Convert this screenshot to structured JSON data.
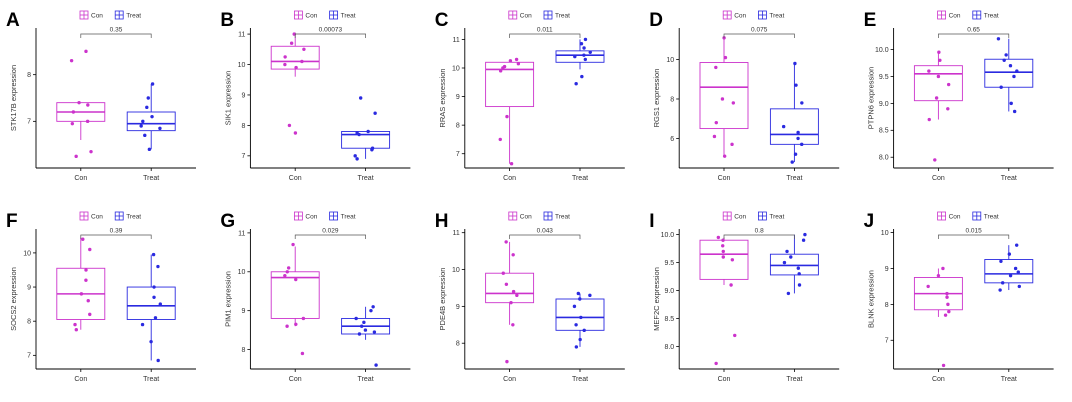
{
  "figure": {
    "panel_count": 10,
    "colors": {
      "con": "#cc33cc",
      "treat": "#2a2ae0",
      "axis": "#000000"
    }
  },
  "chart_data": [
    {
      "type": "box",
      "letter": "A",
      "gene": "STK17B",
      "ylabel": "STK17B expression",
      "categories": [
        "Con",
        "Treat"
      ],
      "legend": [
        "Con",
        "Treat"
      ],
      "ylim": [
        6.0,
        9.0
      ],
      "yticks": [
        7,
        8
      ],
      "pvalue": "0.35",
      "series": [
        {
          "name": "Con",
          "q1": 7.0,
          "median": 7.2,
          "q3": 7.4,
          "whisker_low": 6.6,
          "whisker_high": 7.4,
          "points": [
            8.5,
            8.3,
            7.4,
            7.35,
            7.2,
            7.0,
            6.95,
            6.35,
            6.25
          ]
        },
        {
          "name": "Treat",
          "q1": 6.8,
          "median": 6.95,
          "q3": 7.2,
          "whisker_low": 6.4,
          "whisker_high": 7.8,
          "points": [
            7.8,
            7.5,
            7.3,
            7.1,
            7.0,
            6.9,
            6.85,
            6.7,
            6.4
          ]
        }
      ]
    },
    {
      "type": "box",
      "letter": "B",
      "gene": "SIK1",
      "ylabel": "SIK1 expression",
      "categories": [
        "Con",
        "Treat"
      ],
      "legend": [
        "Con",
        "Treat"
      ],
      "ylim": [
        6.6,
        11.2
      ],
      "yticks": [
        7,
        8,
        9,
        10,
        11
      ],
      "pvalue": "0.00073",
      "series": [
        {
          "name": "Con",
          "q1": 9.85,
          "median": 10.1,
          "q3": 10.6,
          "whisker_low": 9.6,
          "whisker_high": 11.05,
          "points": [
            11.0,
            10.7,
            10.5,
            10.25,
            10.1,
            10.0,
            9.9,
            8.0,
            7.75
          ]
        },
        {
          "name": "Treat",
          "q1": 7.25,
          "median": 7.7,
          "q3": 7.8,
          "whisker_low": 6.9,
          "whisker_high": 7.8,
          "points": [
            8.9,
            8.4,
            7.8,
            7.75,
            7.7,
            7.25,
            7.2,
            7.0,
            6.9
          ]
        }
      ]
    },
    {
      "type": "box",
      "letter": "C",
      "gene": "RRAS",
      "ylabel": "RRAS expression",
      "categories": [
        "Con",
        "Treat"
      ],
      "legend": [
        "Con",
        "Treat"
      ],
      "ylim": [
        6.5,
        11.4
      ],
      "yticks": [
        7,
        8,
        9,
        10,
        11
      ],
      "pvalue": "0.011",
      "series": [
        {
          "name": "Con",
          "q1": 8.65,
          "median": 9.95,
          "q3": 10.2,
          "whisker_low": 6.65,
          "whisker_high": 10.3,
          "points": [
            10.3,
            10.25,
            10.15,
            10.05,
            10.0,
            9.9,
            8.3,
            7.5,
            6.65
          ]
        },
        {
          "name": "Treat",
          "q1": 10.2,
          "median": 10.45,
          "q3": 10.6,
          "whisker_low": 9.95,
          "whisker_high": 11.0,
          "points": [
            11.0,
            10.85,
            10.7,
            10.55,
            10.45,
            10.4,
            10.3,
            9.7,
            9.45
          ]
        }
      ]
    },
    {
      "type": "box",
      "letter": "D",
      "gene": "RGS1",
      "ylabel": "RGS1 expression",
      "categories": [
        "Con",
        "Treat"
      ],
      "legend": [
        "Con",
        "Treat"
      ],
      "ylim": [
        4.5,
        11.6
      ],
      "yticks": [
        6,
        8,
        10
      ],
      "pvalue": "0.075",
      "series": [
        {
          "name": "Con",
          "q1": 6.5,
          "median": 8.6,
          "q3": 9.85,
          "whisker_low": 5.1,
          "whisker_high": 11.1,
          "points": [
            11.1,
            10.1,
            9.6,
            8.0,
            7.8,
            6.8,
            6.1,
            5.7,
            5.1
          ]
        },
        {
          "name": "Treat",
          "q1": 5.7,
          "median": 6.2,
          "q3": 7.5,
          "whisker_low": 4.8,
          "whisker_high": 9.8,
          "points": [
            9.8,
            8.7,
            7.8,
            6.6,
            6.3,
            6.0,
            5.7,
            5.2,
            4.8
          ]
        }
      ]
    },
    {
      "type": "box",
      "letter": "E",
      "gene": "PTPN6",
      "ylabel": "PTPN6 expression",
      "categories": [
        "Con",
        "Treat"
      ],
      "legend": [
        "Con",
        "Treat"
      ],
      "ylim": [
        7.8,
        10.4
      ],
      "yticks": [
        8.0,
        8.5,
        9.0,
        9.5,
        10.0
      ],
      "pvalue": "0.65",
      "series": [
        {
          "name": "Con",
          "q1": 9.05,
          "median": 9.55,
          "q3": 9.7,
          "whisker_low": 8.7,
          "whisker_high": 9.95,
          "points": [
            9.95,
            9.8,
            9.6,
            9.5,
            9.35,
            9.1,
            8.9,
            8.7,
            7.95
          ]
        },
        {
          "name": "Treat",
          "q1": 9.3,
          "median": 9.58,
          "q3": 9.82,
          "whisker_low": 8.85,
          "whisker_high": 10.2,
          "points": [
            10.2,
            9.9,
            9.8,
            9.7,
            9.6,
            9.5,
            9.3,
            9.0,
            8.85
          ]
        }
      ]
    },
    {
      "type": "box",
      "letter": "F",
      "gene": "SOCS2",
      "ylabel": "SOCS2 expression",
      "categories": [
        "Con",
        "Treat"
      ],
      "legend": [
        "Con",
        "Treat"
      ],
      "ylim": [
        6.6,
        10.7
      ],
      "yticks": [
        7,
        8,
        9,
        10
      ],
      "pvalue": "0.39",
      "series": [
        {
          "name": "Con",
          "q1": 8.05,
          "median": 8.8,
          "q3": 9.55,
          "whisker_low": 7.75,
          "whisker_high": 10.45,
          "points": [
            10.4,
            10.1,
            9.5,
            9.2,
            8.8,
            8.6,
            8.2,
            7.9,
            7.75
          ]
        },
        {
          "name": "Treat",
          "q1": 8.05,
          "median": 8.45,
          "q3": 9.0,
          "whisker_low": 6.85,
          "whisker_high": 9.95,
          "points": [
            9.95,
            9.6,
            9.0,
            8.7,
            8.5,
            8.1,
            7.9,
            7.4,
            6.85
          ]
        }
      ]
    },
    {
      "type": "box",
      "letter": "G",
      "gene": "PIM1",
      "ylabel": "PIM1 expression",
      "categories": [
        "Con",
        "Treat"
      ],
      "legend": [
        "Con",
        "Treat"
      ],
      "ylim": [
        7.5,
        11.1
      ],
      "yticks": [
        8,
        9,
        10,
        11
      ],
      "pvalue": "0.029",
      "series": [
        {
          "name": "Con",
          "q1": 8.8,
          "median": 9.85,
          "q3": 10.0,
          "whisker_low": 8.6,
          "whisker_high": 10.65,
          "points": [
            10.7,
            10.1,
            10.0,
            9.9,
            9.8,
            8.8,
            8.65,
            8.6,
            7.9
          ]
        },
        {
          "name": "Treat",
          "q1": 8.4,
          "median": 8.6,
          "q3": 8.8,
          "whisker_low": 8.25,
          "whisker_high": 9.1,
          "points": [
            9.1,
            9.0,
            8.8,
            8.7,
            8.6,
            8.5,
            8.45,
            8.4,
            7.6
          ]
        }
      ]
    },
    {
      "type": "box",
      "letter": "H",
      "gene": "PDE4B",
      "ylabel": "PDE4B expression",
      "categories": [
        "Con",
        "Treat"
      ],
      "legend": [
        "Con",
        "Treat"
      ],
      "ylim": [
        7.3,
        11.1
      ],
      "yticks": [
        8,
        9,
        10,
        11
      ],
      "pvalue": "0.043",
      "series": [
        {
          "name": "Con",
          "q1": 9.1,
          "median": 9.35,
          "q3": 9.9,
          "whisker_low": 8.5,
          "whisker_high": 10.75,
          "points": [
            10.75,
            10.4,
            9.9,
            9.6,
            9.4,
            9.3,
            9.1,
            8.5,
            7.5
          ]
        },
        {
          "name": "Treat",
          "q1": 8.35,
          "median": 8.7,
          "q3": 9.2,
          "whisker_low": 7.9,
          "whisker_high": 9.35,
          "points": [
            9.35,
            9.3,
            9.2,
            9.0,
            8.7,
            8.5,
            8.35,
            8.1,
            7.9
          ]
        }
      ]
    },
    {
      "type": "box",
      "letter": "I",
      "gene": "MEF2C",
      "ylabel": "MEF2C expression",
      "categories": [
        "Con",
        "Treat"
      ],
      "legend": [
        "Con",
        "Treat"
      ],
      "ylim": [
        7.6,
        10.1
      ],
      "yticks": [
        8.0,
        8.5,
        9.0,
        9.5,
        10.0
      ],
      "pvalue": "0.8",
      "series": [
        {
          "name": "Con",
          "q1": 9.2,
          "median": 9.65,
          "q3": 9.9,
          "whisker_low": 9.1,
          "whisker_high": 9.95,
          "points": [
            9.95,
            9.9,
            9.8,
            9.7,
            9.6,
            9.55,
            9.1,
            8.2,
            7.7
          ]
        },
        {
          "name": "Treat",
          "q1": 9.28,
          "median": 9.45,
          "q3": 9.65,
          "whisker_low": 8.95,
          "whisker_high": 10.0,
          "points": [
            10.0,
            9.9,
            9.7,
            9.6,
            9.5,
            9.4,
            9.3,
            9.1,
            8.95
          ]
        }
      ]
    },
    {
      "type": "box",
      "letter": "J",
      "gene": "BLNK",
      "ylabel": "BLNK expression",
      "categories": [
        "Con",
        "Treat"
      ],
      "legend": [
        "Con",
        "Treat"
      ],
      "ylim": [
        6.2,
        10.1
      ],
      "yticks": [
        7,
        8,
        9,
        10
      ],
      "pvalue": "0.015",
      "series": [
        {
          "name": "Con",
          "q1": 7.85,
          "median": 8.3,
          "q3": 8.75,
          "whisker_low": 7.65,
          "whisker_high": 9.0,
          "points": [
            9.0,
            8.8,
            8.5,
            8.3,
            8.2,
            8.0,
            7.8,
            7.7,
            6.3
          ]
        },
        {
          "name": "Treat",
          "q1": 8.6,
          "median": 8.85,
          "q3": 9.25,
          "whisker_low": 8.4,
          "whisker_high": 9.65,
          "points": [
            9.65,
            9.4,
            9.2,
            9.0,
            8.9,
            8.8,
            8.6,
            8.5,
            8.4
          ]
        }
      ]
    }
  ]
}
